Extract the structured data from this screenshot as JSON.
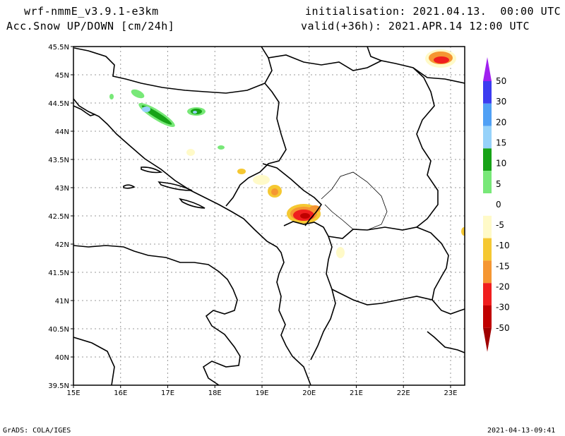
{
  "header": {
    "model": "wrf-nmmE_v3.9.1-e3km",
    "field": "h Acc.Snow UP/DOWN [cm/24h]",
    "init": "initialisation: 2021.04.13.  00:00 UTC",
    "valid": "valid(+36h): 2021.APR.14 12:00 UTC"
  },
  "footer": {
    "credit": "GrADS: COLA/IGES",
    "timestamp": "2021-04-13-09:41"
  },
  "map": {
    "lon_range": [
      15,
      23.3
    ],
    "lat_range": [
      39.5,
      45.5
    ],
    "x_ticks": [
      "15E",
      "16E",
      "17E",
      "18E",
      "19E",
      "20E",
      "21E",
      "22E",
      "23E"
    ],
    "y_ticks": [
      "39.5N",
      "40N",
      "40.5N",
      "41N",
      "41.5N",
      "42N",
      "42.5N",
      "43N",
      "43.5N",
      "44N",
      "44.5N",
      "45N",
      "45.5N"
    ],
    "grid": true
  },
  "colorbar": {
    "labels": [
      "50",
      "30",
      "20",
      "15",
      "10",
      "5",
      "0",
      "-5",
      "-10",
      "-15",
      "-20",
      "-30",
      "-50"
    ],
    "colors": [
      "#a020f0",
      "#3c3cf0",
      "#50a0f5",
      "#96d2fa",
      "#17a317",
      "#78e878",
      "#ffffff",
      "#fffac8",
      "#f5c832",
      "#f59632",
      "#f01e1e",
      "#c00000",
      "#a00000"
    ]
  }
}
